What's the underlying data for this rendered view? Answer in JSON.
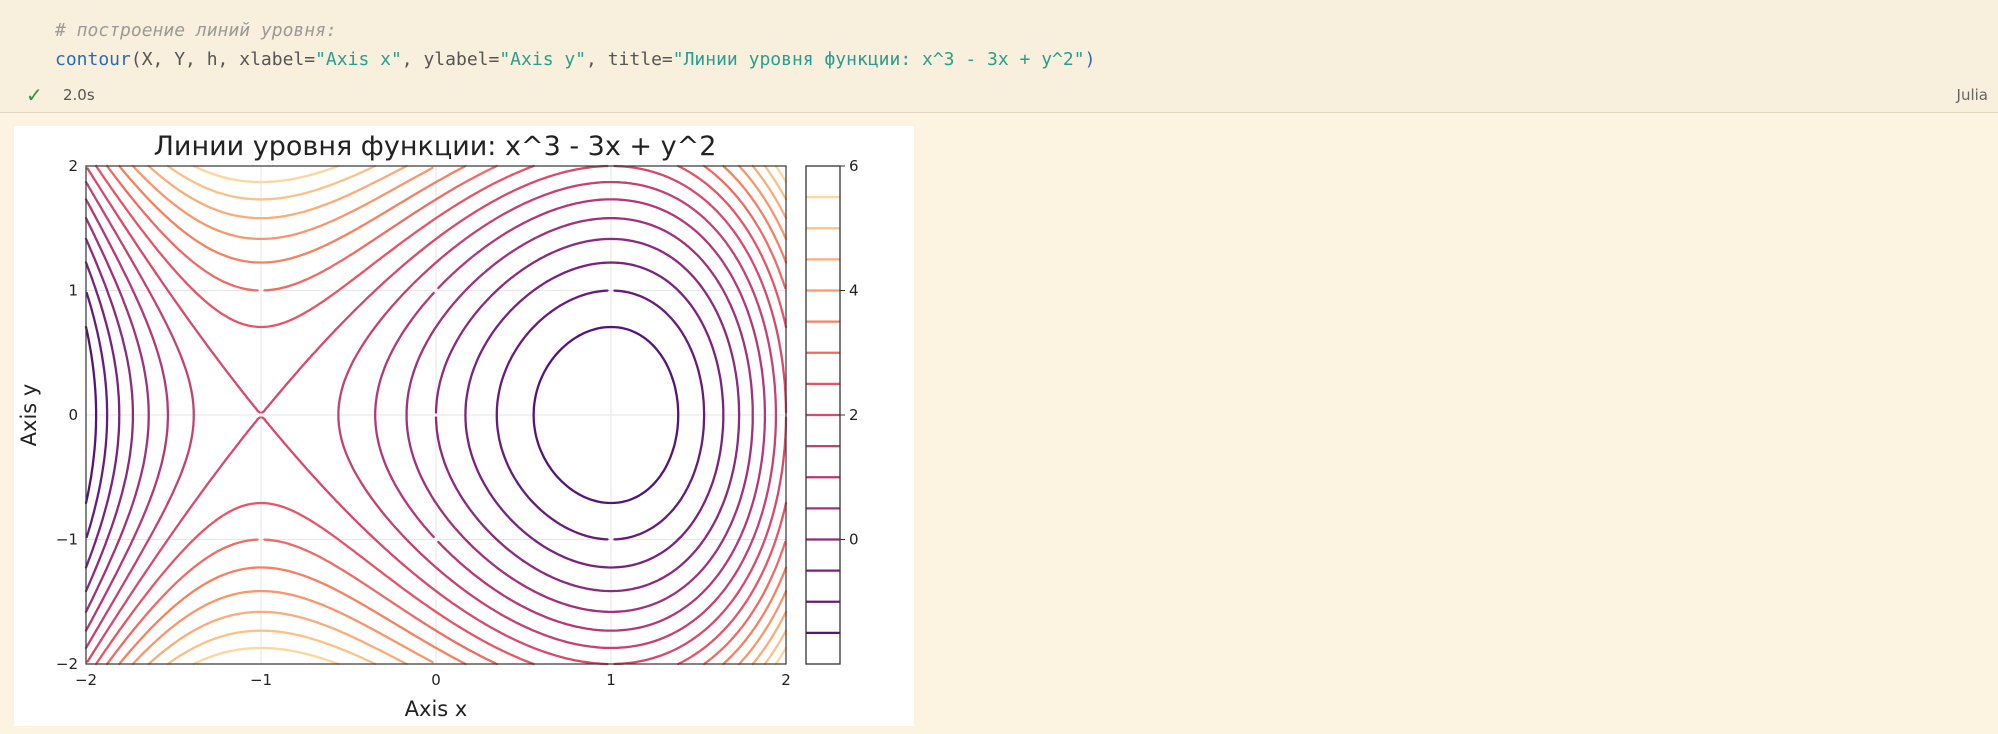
{
  "cell": {
    "comment": "# построение линий уровня:",
    "code": {
      "fn": "contour",
      "open": "(X, Y, h, xlabel=",
      "xlabel_str": "\"Axis x\"",
      "mid1": ", ylabel=",
      "ylabel_str": "\"Axis y\"",
      "mid2": ", title=",
      "title_str": "\"Линии уровня функции: x^3 - 3x + y^2\"",
      "close": ")"
    },
    "status": {
      "icon": "check-icon",
      "duration": "2.0s",
      "language": "Julia"
    }
  },
  "colors": {
    "cell_bg": "#f8efdc",
    "page_bg": "#fdf3e1",
    "success": "#3a8d3a"
  },
  "chart_data": {
    "type": "contour",
    "title": "Линии уровня функции: x^3 - 3x + y^2",
    "xlabel": "Axis x",
    "ylabel": "Axis y",
    "function": "x^3 - 3x + y^2",
    "xlim": [
      -2,
      2
    ],
    "ylim": [
      -2,
      2
    ],
    "xticks": [
      "−2",
      "−1",
      "0",
      "1",
      "2"
    ],
    "yticks": [
      "−2",
      "−1",
      "0",
      "1",
      "2"
    ],
    "colorbar": {
      "ticks": [
        "0",
        "2",
        "4",
        "6"
      ],
      "range": [
        -2,
        6
      ],
      "levels": [
        -1.5,
        -1.0,
        -0.5,
        0.0,
        0.5,
        1.0,
        1.5,
        2.0,
        2.5,
        3.0,
        3.5,
        4.0,
        4.5,
        5.0,
        5.5
      ]
    },
    "colormap": "inferno",
    "grid": true
  }
}
